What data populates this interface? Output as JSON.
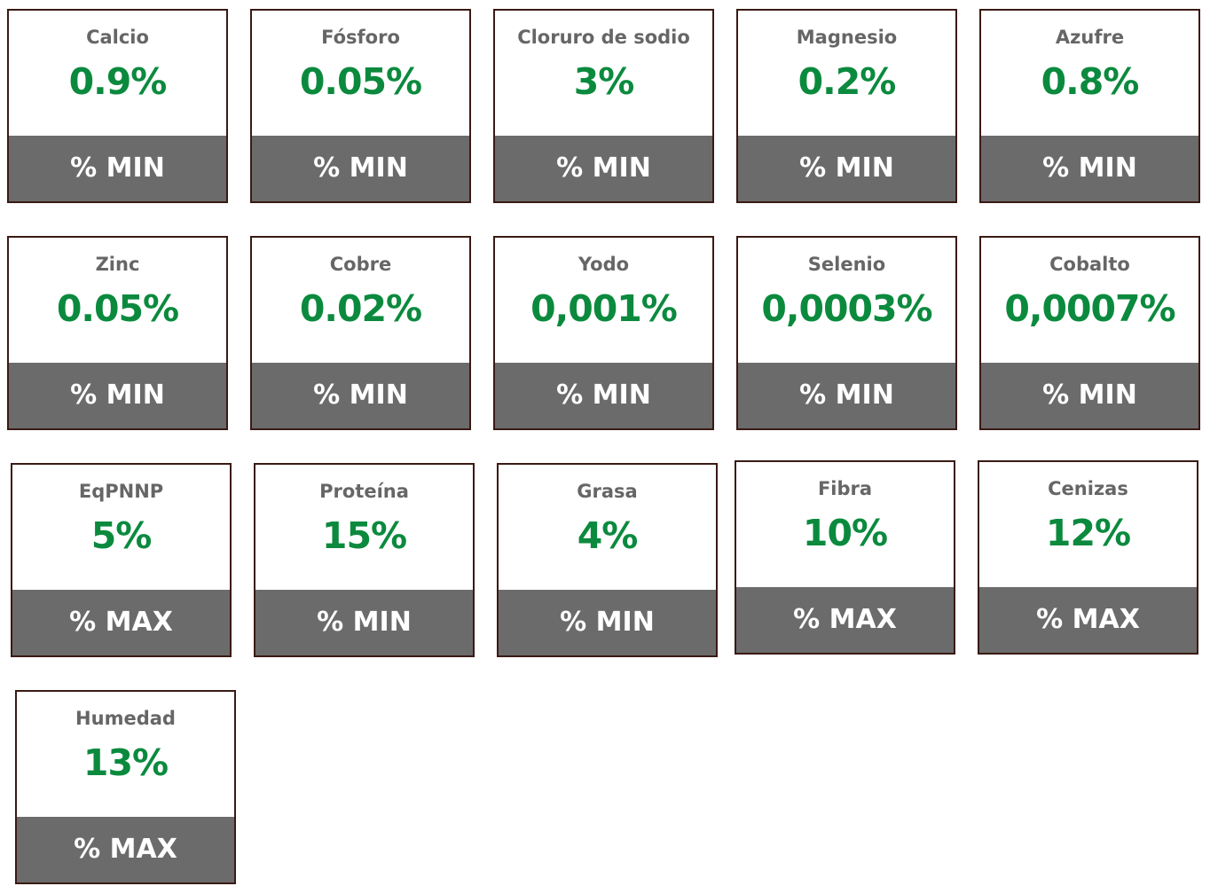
{
  "cards": [
    {
      "label": "Calcio",
      "value": "0.9%",
      "limit": "% MIN"
    },
    {
      "label": "Fósforo",
      "value": "0.05%",
      "limit": "% MIN"
    },
    {
      "label": "Cloruro de sodio",
      "value": "3%",
      "limit": "% MIN"
    },
    {
      "label": "Magnesio",
      "value": "0.2%",
      "limit": "% MIN"
    },
    {
      "label": "Azufre",
      "value": "0.8%",
      "limit": "% MIN"
    },
    {
      "label": "Zinc",
      "value": "0.05%",
      "limit": "% MIN"
    },
    {
      "label": "Cobre",
      "value": "0.02%",
      "limit": "% MIN"
    },
    {
      "label": "Yodo",
      "value": "0,001%",
      "limit": "% MIN"
    },
    {
      "label": "Selenio",
      "value": "0,0003%",
      "limit": "% MIN"
    },
    {
      "label": "Cobalto",
      "value": "0,0007%",
      "limit": "% MIN"
    },
    {
      "label": "EqPNNP",
      "value": "5%",
      "limit": "% MAX"
    },
    {
      "label": "Proteína",
      "value": "15%",
      "limit": "% MIN"
    },
    {
      "label": "Grasa",
      "value": "4%",
      "limit": "% MIN"
    },
    {
      "label": "Fibra",
      "value": "10%",
      "limit": "% MAX"
    },
    {
      "label": "Cenizas",
      "value": "12%",
      "limit": "% MAX"
    },
    {
      "label": "Humedad",
      "value": "13%",
      "limit": "% MAX"
    }
  ]
}
